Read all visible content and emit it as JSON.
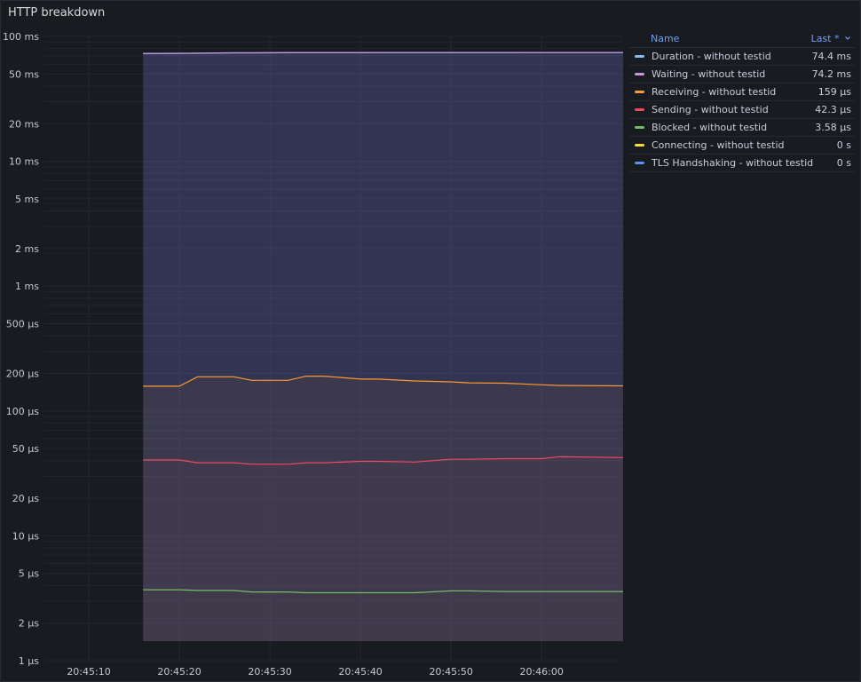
{
  "panel": {
    "title": "HTTP breakdown"
  },
  "legend": {
    "name_header": "Name",
    "last_header": "Last *",
    "sort_icon": "chevron-down-icon",
    "rows": [
      {
        "name": "Duration",
        "sep": " - ",
        "suffix": "without testid",
        "value": "74.4 ms",
        "color": "#8ab8ff"
      },
      {
        "name": "Waiting",
        "sep": " - ",
        "suffix": "without testid",
        "value": "74.2 ms",
        "color": "#ca95e5"
      },
      {
        "name": "Receiving",
        "sep": " - ",
        "suffix": "without testid",
        "value": "159 µs",
        "color": "#ff9830"
      },
      {
        "name": "Sending",
        "sep": " - ",
        "suffix": "without testid",
        "value": "42.3 µs",
        "color": "#f2495c"
      },
      {
        "name": "Blocked",
        "sep": " - ",
        "suffix": "without testid",
        "value": "3.58 µs",
        "color": "#73bf69"
      },
      {
        "name": "Connecting",
        "sep": " - ",
        "suffix": "without testid",
        "value": "0 s",
        "color": "#fade2a"
      },
      {
        "name": "TLS Handshaking",
        "sep": " - ",
        "suffix": "without testid",
        "value": "0 s",
        "color": "#5794f2"
      }
    ]
  },
  "chart_data": {
    "type": "line",
    "yscale": "log",
    "ylim_us": [
      1,
      100000
    ],
    "yticks": [
      {
        "v": 100000,
        "label": "100 ms"
      },
      {
        "v": 50000,
        "label": "50 ms"
      },
      {
        "v": 20000,
        "label": "20 ms"
      },
      {
        "v": 10000,
        "label": "10 ms"
      },
      {
        "v": 5000,
        "label": "5 ms"
      },
      {
        "v": 2000,
        "label": "2 ms"
      },
      {
        "v": 1000,
        "label": "1 ms"
      },
      {
        "v": 500,
        "label": "500 µs"
      },
      {
        "v": 200,
        "label": "200 µs"
      },
      {
        "v": 100,
        "label": "100 µs"
      },
      {
        "v": 50,
        "label": "50 µs"
      },
      {
        "v": 20,
        "label": "20 µs"
      },
      {
        "v": 10,
        "label": "10 µs"
      },
      {
        "v": 5,
        "label": "5 µs"
      },
      {
        "v": 2,
        "label": "2 µs"
      },
      {
        "v": 1,
        "label": "1 µs"
      }
    ],
    "xlim": [
      "20:45:05",
      "20:46:09"
    ],
    "xticks": [
      "20:45:10",
      "20:45:20",
      "20:45:30",
      "20:45:40",
      "20:45:50",
      "20:46:00"
    ],
    "x": [
      "20:45:16",
      "20:45:20",
      "20:45:22",
      "20:45:26",
      "20:45:28",
      "20:45:32",
      "20:45:34",
      "20:45:36",
      "20:45:40",
      "20:45:42",
      "20:45:46",
      "20:45:50",
      "20:45:52",
      "20:45:56",
      "20:46:00",
      "20:46:02",
      "20:46:09"
    ],
    "series": [
      {
        "name": "Duration - without testid",
        "color": "#8ab8ff",
        "values_us": [
          73000,
          73200,
          73500,
          74000,
          74000,
          74200,
          74200,
          74200,
          74200,
          74300,
          74300,
          74300,
          74300,
          74300,
          74400,
          74400,
          74400
        ]
      },
      {
        "name": "Waiting - without testid",
        "color": "#ca95e5",
        "values_us": [
          72800,
          73000,
          73300,
          73800,
          73800,
          74000,
          74000,
          74000,
          74000,
          74100,
          74100,
          74100,
          74100,
          74100,
          74200,
          74200,
          74200
        ]
      },
      {
        "name": "Receiving - without testid",
        "color": "#ff9830",
        "values_us": [
          158,
          158,
          188,
          188,
          176,
          176,
          190,
          190,
          180,
          180,
          174,
          171,
          168,
          167,
          162,
          160,
          159
        ]
      },
      {
        "name": "Sending - without testid",
        "color": "#f2495c",
        "values_us": [
          40.5,
          40.5,
          38.5,
          38.5,
          37.5,
          37.5,
          38.5,
          38.5,
          39.5,
          39.5,
          39.0,
          41.0,
          41.0,
          41.5,
          41.5,
          43.0,
          42.3
        ]
      },
      {
        "name": "Blocked - without testid",
        "color": "#73bf69",
        "values_us": [
          3.7,
          3.7,
          3.65,
          3.65,
          3.55,
          3.55,
          3.5,
          3.5,
          3.5,
          3.5,
          3.5,
          3.62,
          3.62,
          3.58,
          3.58,
          3.58,
          3.58
        ]
      }
    ]
  }
}
